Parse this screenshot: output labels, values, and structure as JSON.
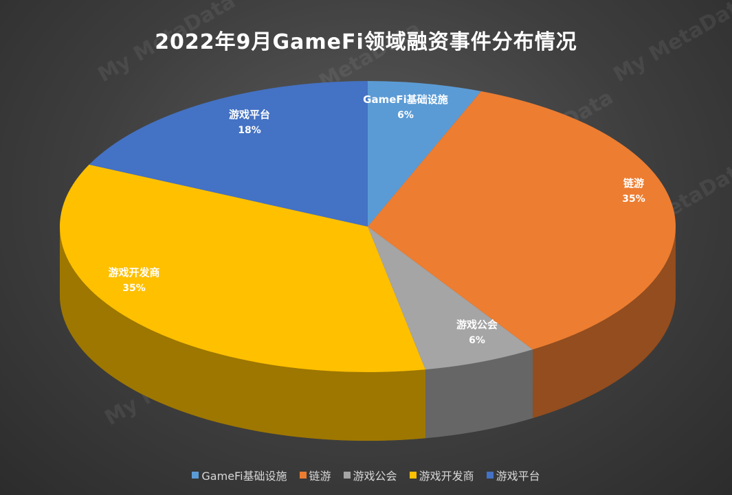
{
  "chart_data": {
    "type": "pie",
    "title": "2022年9月GameFi领域融资事件分布情况",
    "categories": [
      "GameFi基础设施",
      "链游",
      "游戏公会",
      "游戏开发商",
      "游戏平台"
    ],
    "values": [
      6,
      35,
      6,
      35,
      18
    ],
    "value_labels": [
      "6%",
      "35%",
      "6%",
      "35%",
      "18%"
    ],
    "unit": "%",
    "colors": [
      "#5b9bd5",
      "#ed7d31",
      "#a5a5a5",
      "#ffc000",
      "#4472c4"
    ],
    "legend_position": "bottom",
    "style": "3d"
  },
  "watermark": "My MetaData"
}
